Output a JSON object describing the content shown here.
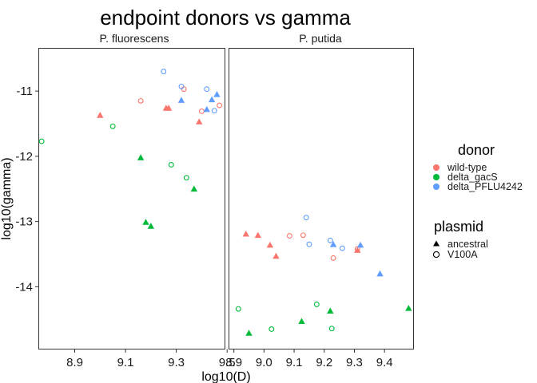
{
  "chart_data": {
    "type": "scatter",
    "title": "endpoint donors vs gamma",
    "xlabel": "log10(D)",
    "ylabel": "log10(gamma)",
    "grid": false,
    "legend_position": "right",
    "legends": [
      {
        "title": "donor",
        "items": [
          {
            "label": "wild-type",
            "color": "#F8766D"
          },
          {
            "label": "delta_gacS",
            "color": "#00BA38"
          },
          {
            "label": "delta_PFLU4242",
            "color": "#619CFF"
          }
        ]
      },
      {
        "title": "plasmid",
        "items": [
          {
            "label": "ancestral",
            "shape": "triangle-filled"
          },
          {
            "label": "V100A",
            "shape": "circle-open"
          }
        ]
      }
    ],
    "y_ticks": [
      "-11",
      "-12",
      "-13",
      "-14"
    ],
    "ylim": [
      -14.95,
      -10.35
    ],
    "panels": [
      {
        "label": "P. fluorescens",
        "xlim": [
          8.76,
          9.49
        ],
        "x_ticks": [
          "8.9",
          "9.1",
          "9.3",
          "9.5"
        ],
        "points": [
          {
            "x": 9.16,
            "y": -11.15,
            "donor": "wild-type",
            "plasmid": "V100A"
          },
          {
            "x": 9.33,
            "y": -10.97,
            "donor": "wild-type",
            "plasmid": "V100A"
          },
          {
            "x": 9.4,
            "y": -11.31,
            "donor": "wild-type",
            "plasmid": "V100A"
          },
          {
            "x": 9.47,
            "y": -11.22,
            "donor": "wild-type",
            "plasmid": "V100A"
          },
          {
            "x": 9.0,
            "y": -11.37,
            "donor": "wild-type",
            "plasmid": "ancestral"
          },
          {
            "x": 9.26,
            "y": -11.26,
            "donor": "wild-type",
            "plasmid": "ancestral"
          },
          {
            "x": 9.27,
            "y": -11.26,
            "donor": "wild-type",
            "plasmid": "ancestral"
          },
          {
            "x": 9.39,
            "y": -11.47,
            "donor": "wild-type",
            "plasmid": "ancestral"
          },
          {
            "x": 8.77,
            "y": -11.77,
            "donor": "delta_gacS",
            "plasmid": "V100A"
          },
          {
            "x": 9.05,
            "y": -11.54,
            "donor": "delta_gacS",
            "plasmid": "V100A"
          },
          {
            "x": 9.28,
            "y": -12.13,
            "donor": "delta_gacS",
            "plasmid": "V100A"
          },
          {
            "x": 9.34,
            "y": -12.33,
            "donor": "delta_gacS",
            "plasmid": "V100A"
          },
          {
            "x": 9.16,
            "y": -12.02,
            "donor": "delta_gacS",
            "plasmid": "ancestral"
          },
          {
            "x": 9.37,
            "y": -12.5,
            "donor": "delta_gacS",
            "plasmid": "ancestral"
          },
          {
            "x": 9.18,
            "y": -13.01,
            "donor": "delta_gacS",
            "plasmid": "ancestral"
          },
          {
            "x": 9.2,
            "y": -13.07,
            "donor": "delta_gacS",
            "plasmid": "ancestral"
          },
          {
            "x": 9.25,
            "y": -10.7,
            "donor": "delta_PFLU4242",
            "plasmid": "V100A"
          },
          {
            "x": 9.32,
            "y": -10.93,
            "donor": "delta_PFLU4242",
            "plasmid": "V100A"
          },
          {
            "x": 9.42,
            "y": -10.97,
            "donor": "delta_PFLU4242",
            "plasmid": "V100A"
          },
          {
            "x": 9.45,
            "y": -11.3,
            "donor": "delta_PFLU4242",
            "plasmid": "V100A"
          },
          {
            "x": 9.32,
            "y": -11.14,
            "donor": "delta_PFLU4242",
            "plasmid": "ancestral"
          },
          {
            "x": 9.42,
            "y": -11.28,
            "donor": "delta_PFLU4242",
            "plasmid": "ancestral"
          },
          {
            "x": 9.44,
            "y": -11.13,
            "donor": "delta_PFLU4242",
            "plasmid": "ancestral"
          },
          {
            "x": 9.46,
            "y": -11.05,
            "donor": "delta_PFLU4242",
            "plasmid": "ancestral"
          }
        ]
      },
      {
        "label": "P. putida",
        "xlim": [
          8.885,
          9.495
        ],
        "x_ticks": [
          "8.9",
          "9.0",
          "9.1",
          "9.2",
          "9.3",
          "9.4"
        ],
        "points": [
          {
            "x": 9.085,
            "y": -13.22,
            "donor": "wild-type",
            "plasmid": "V100A"
          },
          {
            "x": 9.13,
            "y": -13.21,
            "donor": "wild-type",
            "plasmid": "V100A"
          },
          {
            "x": 9.23,
            "y": -13.56,
            "donor": "wild-type",
            "plasmid": "V100A"
          },
          {
            "x": 9.31,
            "y": -13.42,
            "donor": "wild-type",
            "plasmid": "V100A"
          },
          {
            "x": 8.94,
            "y": -13.19,
            "donor": "wild-type",
            "plasmid": "ancestral"
          },
          {
            "x": 8.98,
            "y": -13.21,
            "donor": "wild-type",
            "plasmid": "ancestral"
          },
          {
            "x": 9.02,
            "y": -13.36,
            "donor": "wild-type",
            "plasmid": "ancestral"
          },
          {
            "x": 9.04,
            "y": -13.53,
            "donor": "wild-type",
            "plasmid": "ancestral"
          },
          {
            "x": 9.31,
            "y": -13.44,
            "donor": "wild-type",
            "plasmid": "ancestral"
          },
          {
            "x": 8.915,
            "y": -14.34,
            "donor": "delta_gacS",
            "plasmid": "V100A"
          },
          {
            "x": 9.025,
            "y": -14.65,
            "donor": "delta_gacS",
            "plasmid": "V100A"
          },
          {
            "x": 9.175,
            "y": -14.27,
            "donor": "delta_gacS",
            "plasmid": "V100A"
          },
          {
            "x": 9.225,
            "y": -14.64,
            "donor": "delta_gacS",
            "plasmid": "V100A"
          },
          {
            "x": 8.95,
            "y": -14.71,
            "donor": "delta_gacS",
            "plasmid": "ancestral"
          },
          {
            "x": 9.125,
            "y": -14.53,
            "donor": "delta_gacS",
            "plasmid": "ancestral"
          },
          {
            "x": 9.22,
            "y": -14.37,
            "donor": "delta_gacS",
            "plasmid": "ancestral"
          },
          {
            "x": 9.48,
            "y": -14.33,
            "donor": "delta_gacS",
            "plasmid": "ancestral"
          },
          {
            "x": 9.14,
            "y": -12.94,
            "donor": "delta_PFLU4242",
            "plasmid": "V100A"
          },
          {
            "x": 9.15,
            "y": -13.35,
            "donor": "delta_PFLU4242",
            "plasmid": "V100A"
          },
          {
            "x": 9.22,
            "y": -13.29,
            "donor": "delta_PFLU4242",
            "plasmid": "V100A"
          },
          {
            "x": 9.26,
            "y": -13.41,
            "donor": "delta_PFLU4242",
            "plasmid": "V100A"
          },
          {
            "x": 9.23,
            "y": -13.35,
            "donor": "delta_PFLU4242",
            "plasmid": "ancestral"
          },
          {
            "x": 9.32,
            "y": -13.36,
            "donor": "delta_PFLU4242",
            "plasmid": "ancestral"
          },
          {
            "x": 9.385,
            "y": -13.8,
            "donor": "delta_PFLU4242",
            "plasmid": "ancestral"
          }
        ]
      }
    ]
  }
}
